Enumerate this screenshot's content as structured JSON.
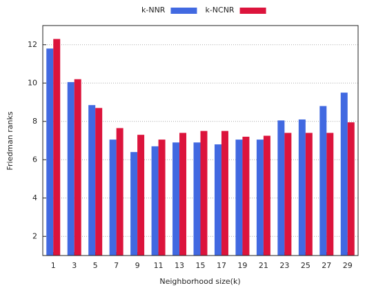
{
  "chart_data": {
    "type": "bar",
    "x_label": "Neighborhood size(k)",
    "y_label": "Friedman ranks",
    "categories": [
      "1",
      "3",
      "5",
      "7",
      "9",
      "11",
      "13",
      "15",
      "17",
      "19",
      "21",
      "23",
      "25",
      "27",
      "29"
    ],
    "series": [
      {
        "name": "k-NNR",
        "color": "#4169e1",
        "values": [
          11.8,
          10.05,
          8.85,
          7.05,
          6.4,
          6.7,
          6.9,
          6.9,
          6.8,
          7.05,
          7.05,
          8.05,
          8.1,
          8.8,
          9.5
        ]
      },
      {
        "name": "k-NCNR",
        "color": "#dc143c",
        "values": [
          12.3,
          10.2,
          8.7,
          7.65,
          7.3,
          7.05,
          7.4,
          7.5,
          7.5,
          7.2,
          7.25,
          7.4,
          7.4,
          7.4,
          7.95
        ]
      }
    ],
    "ylim": [
      1,
      13
    ],
    "yticks": [
      2,
      4,
      6,
      8,
      10,
      12
    ],
    "grid": true,
    "legend": "top"
  }
}
